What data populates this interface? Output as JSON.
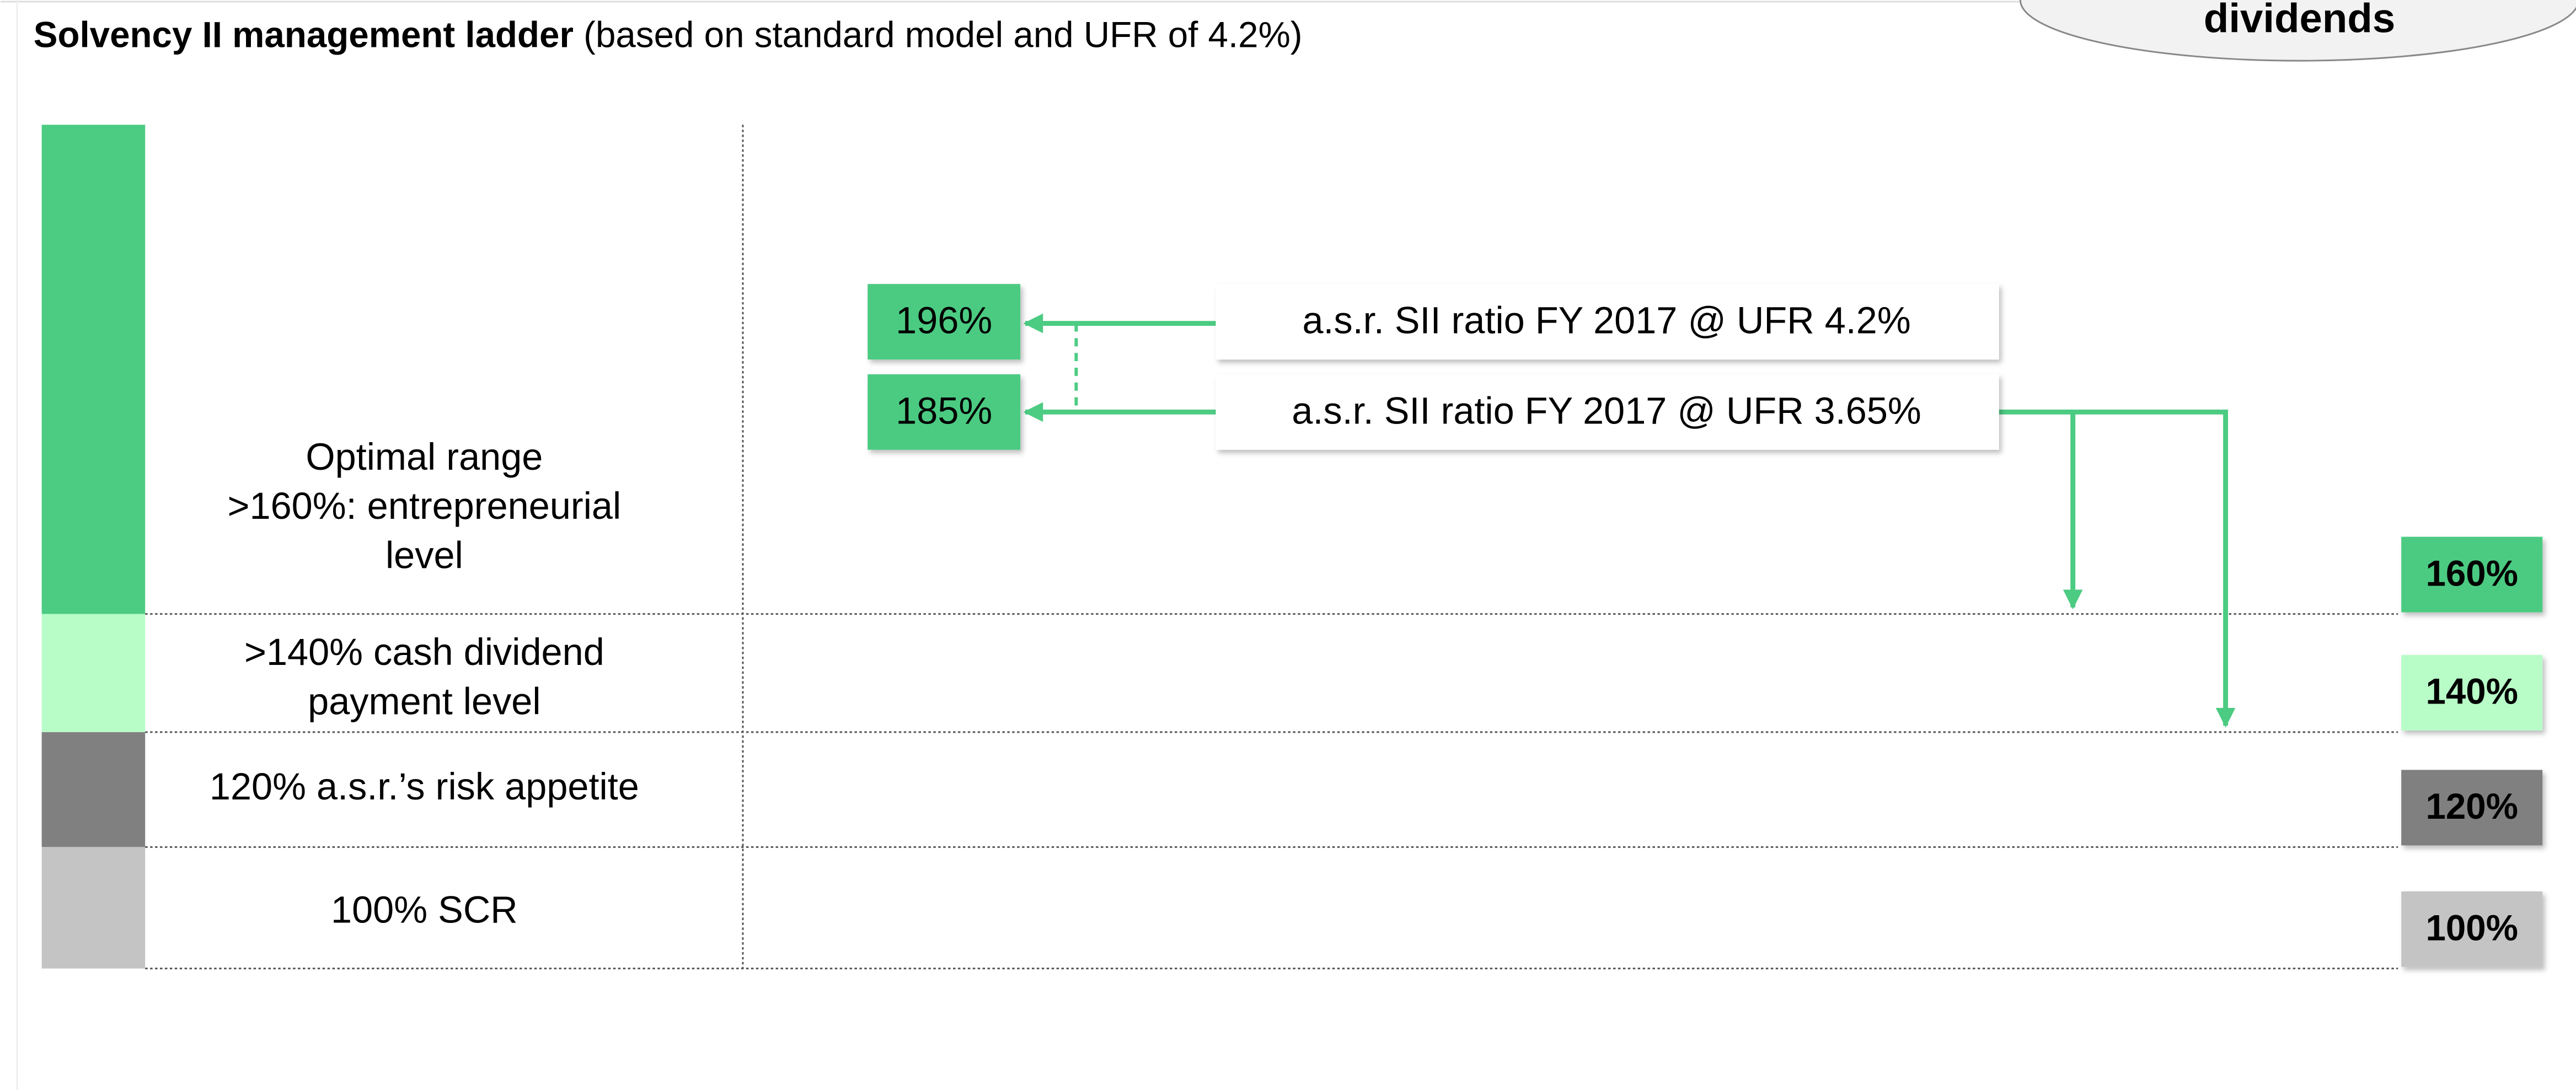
{
  "title": {
    "bold": "Solvency II management ladder",
    "rest": "(based on standard model and UFR of 4.2%)"
  },
  "callout": "dividends",
  "levels": [
    {
      "lines": [
        "Optimal range",
        ">160%: entrepreneurial",
        "level"
      ],
      "badge": "160%"
    },
    {
      "lines": [
        ">140% cash dividend",
        "payment level"
      ],
      "badge": "140%"
    },
    {
      "lines": [
        "120% a.s.r.’s risk appetite"
      ],
      "badge": "120%"
    },
    {
      "lines": [
        "100% SCR"
      ],
      "badge": "100%"
    }
  ],
  "ratios": [
    {
      "label": "a.s.r. SII ratio FY 2017 @ UFR 4.2%",
      "value": "196%"
    },
    {
      "label": "a.s.r. SII ratio FY 2017 @ UFR 3.65%",
      "value": "185%"
    }
  ]
}
